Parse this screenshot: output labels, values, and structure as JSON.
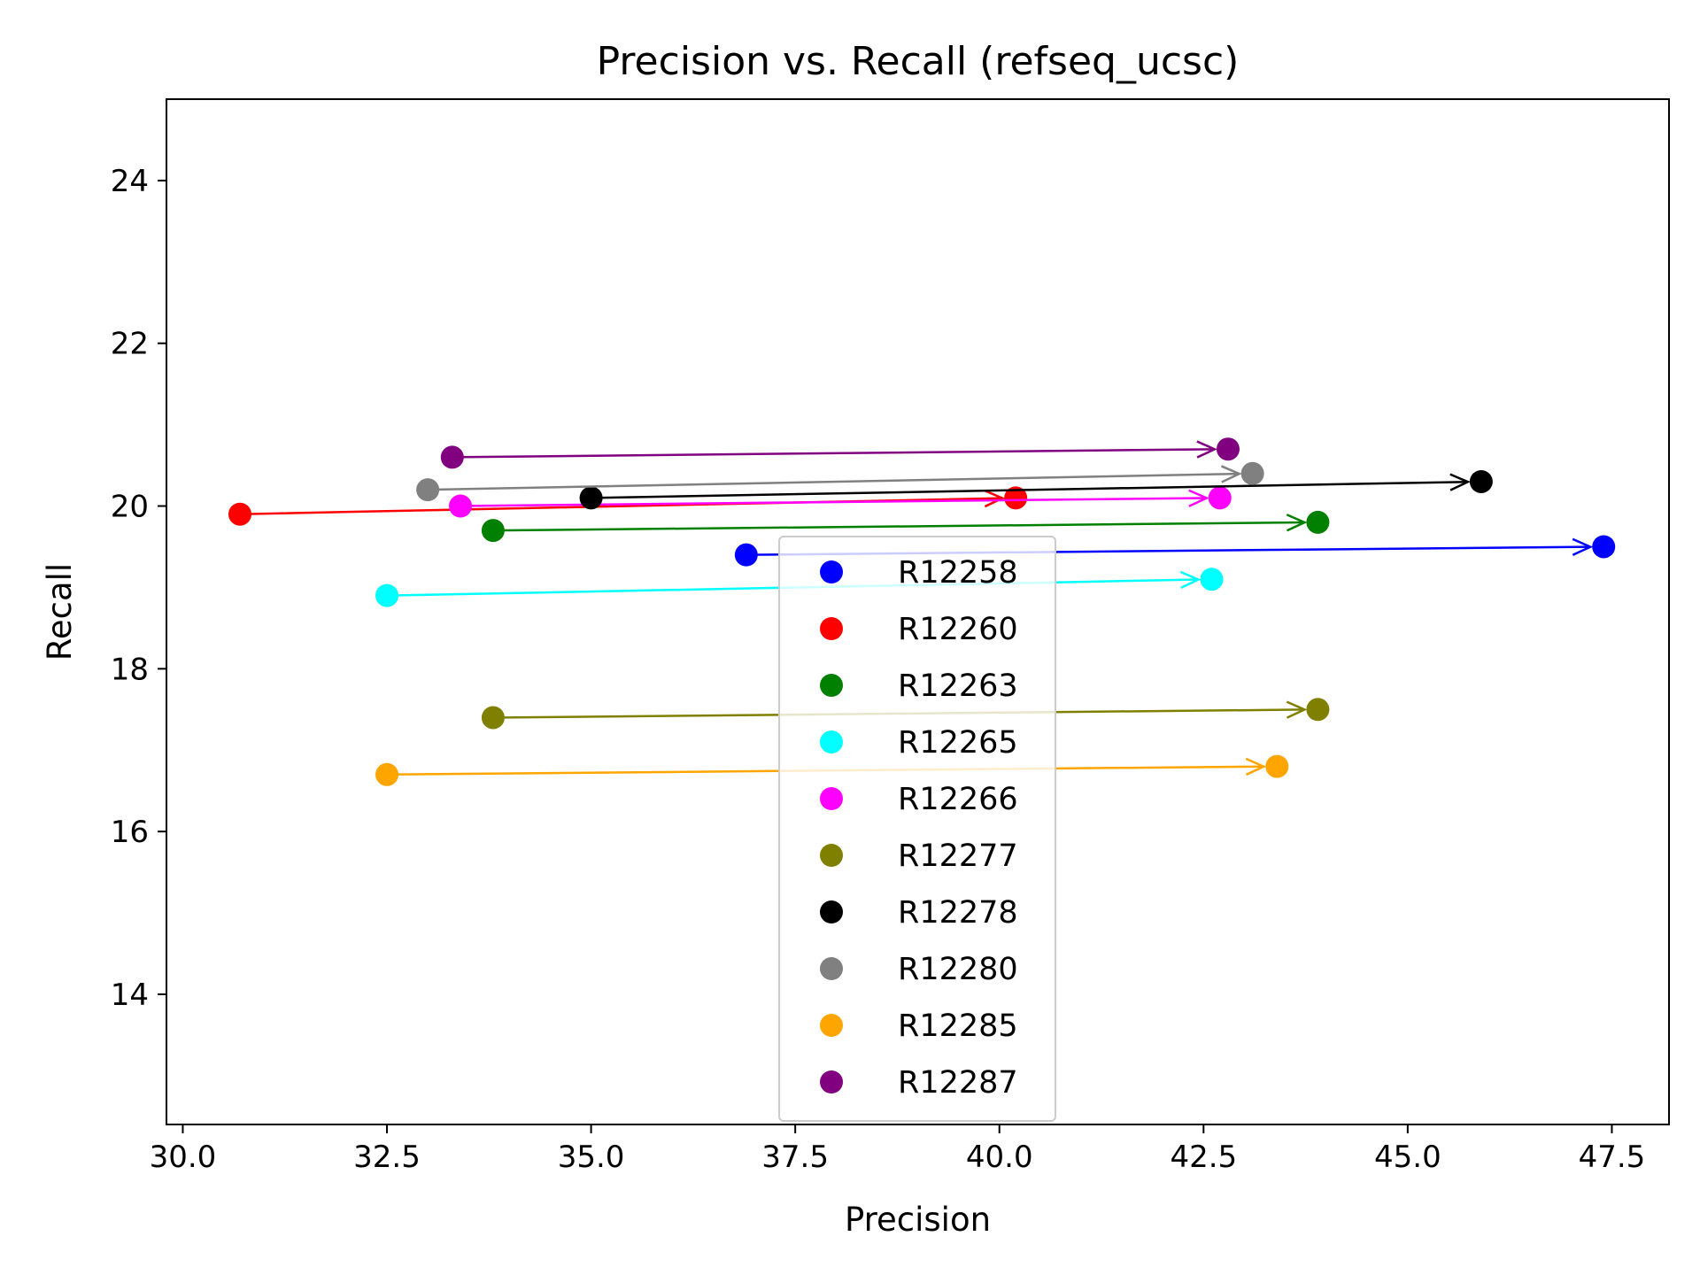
{
  "chart_data": {
    "type": "scatter",
    "title": "Precision vs. Recall (refseq_ucsc)",
    "xlabel": "Precision",
    "ylabel": "Recall",
    "xlim": [
      29.8,
      48.2
    ],
    "ylim": [
      12.4,
      25.0
    ],
    "xticks": [
      "30.0",
      "32.5",
      "35.0",
      "37.5",
      "40.0",
      "42.5",
      "45.0",
      "47.5"
    ],
    "yticks": [
      "14",
      "16",
      "18",
      "20",
      "22",
      "24"
    ],
    "grid": false,
    "legend_position": "lower-center",
    "series": [
      {
        "name": "R12258",
        "color": "#0000ff",
        "from": [
          36.9,
          19.4
        ],
        "to": [
          47.4,
          19.5
        ]
      },
      {
        "name": "R12260",
        "color": "#ff0000",
        "from": [
          30.7,
          19.9
        ],
        "to": [
          40.2,
          20.1
        ]
      },
      {
        "name": "R12263",
        "color": "#008000",
        "from": [
          33.8,
          19.7
        ],
        "to": [
          43.9,
          19.8
        ]
      },
      {
        "name": "R12265",
        "color": "#00ffff",
        "from": [
          32.5,
          18.9
        ],
        "to": [
          42.6,
          19.1
        ]
      },
      {
        "name": "R12266",
        "color": "#ff00ff",
        "from": [
          33.4,
          20.0
        ],
        "to": [
          42.7,
          20.1
        ]
      },
      {
        "name": "R12277",
        "color": "#808000",
        "from": [
          33.8,
          17.4
        ],
        "to": [
          43.9,
          17.5
        ]
      },
      {
        "name": "R12278",
        "color": "#000000",
        "from": [
          35.0,
          20.1
        ],
        "to": [
          45.9,
          20.3
        ]
      },
      {
        "name": "R12280",
        "color": "#808080",
        "from": [
          33.0,
          20.2
        ],
        "to": [
          43.1,
          20.4
        ]
      },
      {
        "name": "R12285",
        "color": "#ffa500",
        "from": [
          32.5,
          16.7
        ],
        "to": [
          43.4,
          16.8
        ]
      },
      {
        "name": "R12287",
        "color": "#800080",
        "from": [
          33.3,
          20.6
        ],
        "to": [
          42.8,
          20.7
        ]
      }
    ]
  }
}
